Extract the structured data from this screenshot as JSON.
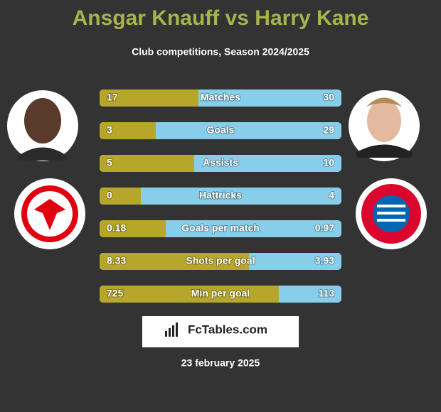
{
  "header": {
    "title": "Ansgar Knauff vs Harry Kane",
    "subtitle": "Club competitions, Season 2024/2025"
  },
  "rows": [
    {
      "label": "Matches",
      "left": 17,
      "right": 30
    },
    {
      "label": "Goals",
      "left": 3,
      "right": 29
    },
    {
      "label": "Assists",
      "left": 5,
      "right": 10
    },
    {
      "label": "Hattricks",
      "left": 0,
      "right": 4
    },
    {
      "label": "Goals per match",
      "left": 0.18,
      "right": 0.97
    },
    {
      "label": "Shots per goal",
      "left": 8.33,
      "right": 3.93
    },
    {
      "label": "Min per goal",
      "left": 725,
      "right": 113
    }
  ],
  "brand": "FcTables.com",
  "date": "23 february 2025"
}
